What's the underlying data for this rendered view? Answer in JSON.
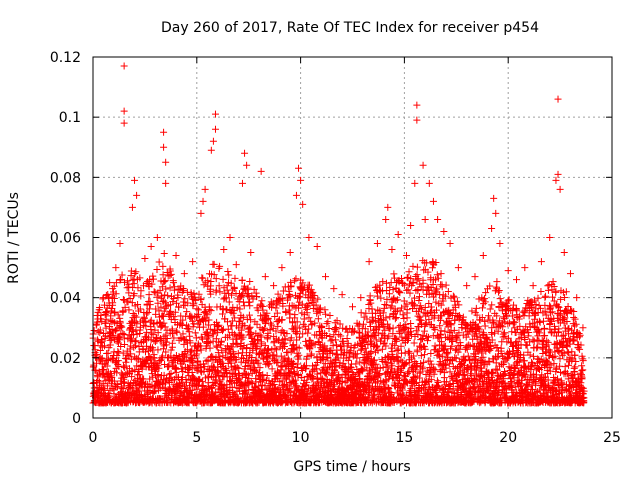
{
  "chart_data": {
    "type": "scatter",
    "title": "Day 260 of 2017, Rate Of TEC Index for receiver p454",
    "xlabel": "GPS time / hours",
    "ylabel": "ROTI / TECUs",
    "xlim": [
      0,
      25
    ],
    "ylim": [
      0,
      0.12
    ],
    "x_ticks": [
      0,
      5,
      10,
      15,
      20,
      25
    ],
    "x_tick_labels": [
      "0",
      "5",
      "10",
      "15",
      "20",
      "25"
    ],
    "y_ticks": [
      0,
      0.02,
      0.04,
      0.06,
      0.08,
      0.1,
      0.12
    ],
    "y_tick_labels": [
      "0",
      "0.02",
      "0.04",
      "0.06",
      "0.08",
      "0.1",
      "0.12"
    ],
    "grid": true,
    "marker": "plus",
    "color": "#ff0000",
    "series": [
      {
        "values_note_x": "GPS hour",
        "points": [
          [
            1.5,
            0.117
          ],
          [
            1.5,
            0.102
          ],
          [
            1.5,
            0.098
          ],
          [
            3.4,
            0.095
          ],
          [
            3.4,
            0.09
          ],
          [
            3.5,
            0.085
          ],
          [
            3.5,
            0.078
          ],
          [
            5.9,
            0.101
          ],
          [
            5.9,
            0.096
          ],
          [
            5.8,
            0.092
          ],
          [
            5.7,
            0.089
          ],
          [
            7.3,
            0.088
          ],
          [
            7.4,
            0.084
          ],
          [
            8.1,
            0.082
          ],
          [
            7.2,
            0.078
          ],
          [
            9.9,
            0.083
          ],
          [
            10.0,
            0.079
          ],
          [
            9.8,
            0.074
          ],
          [
            10.1,
            0.071
          ],
          [
            15.6,
            0.104
          ],
          [
            15.6,
            0.099
          ],
          [
            15.9,
            0.084
          ],
          [
            15.5,
            0.078
          ],
          [
            16.2,
            0.078
          ],
          [
            22.4,
            0.106
          ],
          [
            22.4,
            0.081
          ],
          [
            22.3,
            0.079
          ],
          [
            22.5,
            0.076
          ],
          [
            2.0,
            0.079
          ],
          [
            2.1,
            0.074
          ],
          [
            1.9,
            0.07
          ],
          [
            5.4,
            0.076
          ],
          [
            5.3,
            0.072
          ],
          [
            5.2,
            0.068
          ],
          [
            19.3,
            0.073
          ],
          [
            19.4,
            0.068
          ],
          [
            19.2,
            0.063
          ],
          [
            14.2,
            0.07
          ],
          [
            14.1,
            0.066
          ],
          [
            16.4,
            0.072
          ],
          [
            16.6,
            0.066
          ],
          [
            16.9,
            0.062
          ],
          [
            0.3,
            0.036
          ],
          [
            0.5,
            0.04
          ],
          [
            0.8,
            0.045
          ],
          [
            1.1,
            0.05
          ],
          [
            1.3,
            0.058
          ],
          [
            2.5,
            0.053
          ],
          [
            2.8,
            0.057
          ],
          [
            3.1,
            0.06
          ],
          [
            4.0,
            0.054
          ],
          [
            4.4,
            0.048
          ],
          [
            4.8,
            0.052
          ],
          [
            6.3,
            0.056
          ],
          [
            6.6,
            0.06
          ],
          [
            6.9,
            0.051
          ],
          [
            7.6,
            0.055
          ],
          [
            8.3,
            0.047
          ],
          [
            8.7,
            0.044
          ],
          [
            9.1,
            0.05
          ],
          [
            9.5,
            0.055
          ],
          [
            10.4,
            0.06
          ],
          [
            10.8,
            0.057
          ],
          [
            11.2,
            0.047
          ],
          [
            11.6,
            0.043
          ],
          [
            12.0,
            0.041
          ],
          [
            12.5,
            0.037
          ],
          [
            12.9,
            0.04
          ],
          [
            13.3,
            0.052
          ],
          [
            13.7,
            0.058
          ],
          [
            14.4,
            0.056
          ],
          [
            14.7,
            0.061
          ],
          [
            15.1,
            0.054
          ],
          [
            15.3,
            0.064
          ],
          [
            16.0,
            0.066
          ],
          [
            17.2,
            0.058
          ],
          [
            17.6,
            0.05
          ],
          [
            18.0,
            0.044
          ],
          [
            18.4,
            0.047
          ],
          [
            18.8,
            0.054
          ],
          [
            19.6,
            0.058
          ],
          [
            20.0,
            0.049
          ],
          [
            20.4,
            0.046
          ],
          [
            20.8,
            0.05
          ],
          [
            21.2,
            0.044
          ],
          [
            21.6,
            0.052
          ],
          [
            22.0,
            0.06
          ],
          [
            22.7,
            0.055
          ],
          [
            23.0,
            0.048
          ],
          [
            23.3,
            0.04
          ],
          [
            23.6,
            0.03
          ]
        ]
      }
    ],
    "density_envelope": [
      [
        0.0,
        0.03
      ],
      [
        0.5,
        0.042
      ],
      [
        1.0,
        0.046
      ],
      [
        1.5,
        0.048
      ],
      [
        2.0,
        0.05
      ],
      [
        2.5,
        0.044
      ],
      [
        3.0,
        0.05
      ],
      [
        3.5,
        0.056
      ],
      [
        4.0,
        0.046
      ],
      [
        4.5,
        0.042
      ],
      [
        5.0,
        0.044
      ],
      [
        5.5,
        0.05
      ],
      [
        6.0,
        0.052
      ],
      [
        6.5,
        0.05
      ],
      [
        7.0,
        0.046
      ],
      [
        7.5,
        0.046
      ],
      [
        8.0,
        0.04
      ],
      [
        8.5,
        0.038
      ],
      [
        9.0,
        0.042
      ],
      [
        9.5,
        0.046
      ],
      [
        10.0,
        0.048
      ],
      [
        10.5,
        0.044
      ],
      [
        11.0,
        0.038
      ],
      [
        11.5,
        0.034
      ],
      [
        12.0,
        0.032
      ],
      [
        12.5,
        0.03
      ],
      [
        13.0,
        0.036
      ],
      [
        13.5,
        0.044
      ],
      [
        14.0,
        0.046
      ],
      [
        14.5,
        0.048
      ],
      [
        15.0,
        0.046
      ],
      [
        15.5,
        0.052
      ],
      [
        16.0,
        0.054
      ],
      [
        16.5,
        0.052
      ],
      [
        17.0,
        0.046
      ],
      [
        17.5,
        0.04
      ],
      [
        18.0,
        0.036
      ],
      [
        18.5,
        0.04
      ],
      [
        19.0,
        0.044
      ],
      [
        19.5,
        0.046
      ],
      [
        20.0,
        0.04
      ],
      [
        20.5,
        0.038
      ],
      [
        21.0,
        0.04
      ],
      [
        21.5,
        0.042
      ],
      [
        22.0,
        0.048
      ],
      [
        22.5,
        0.046
      ],
      [
        23.0,
        0.04
      ],
      [
        23.6,
        0.024
      ]
    ],
    "x_coverage": [
      0,
      23.65
    ]
  }
}
